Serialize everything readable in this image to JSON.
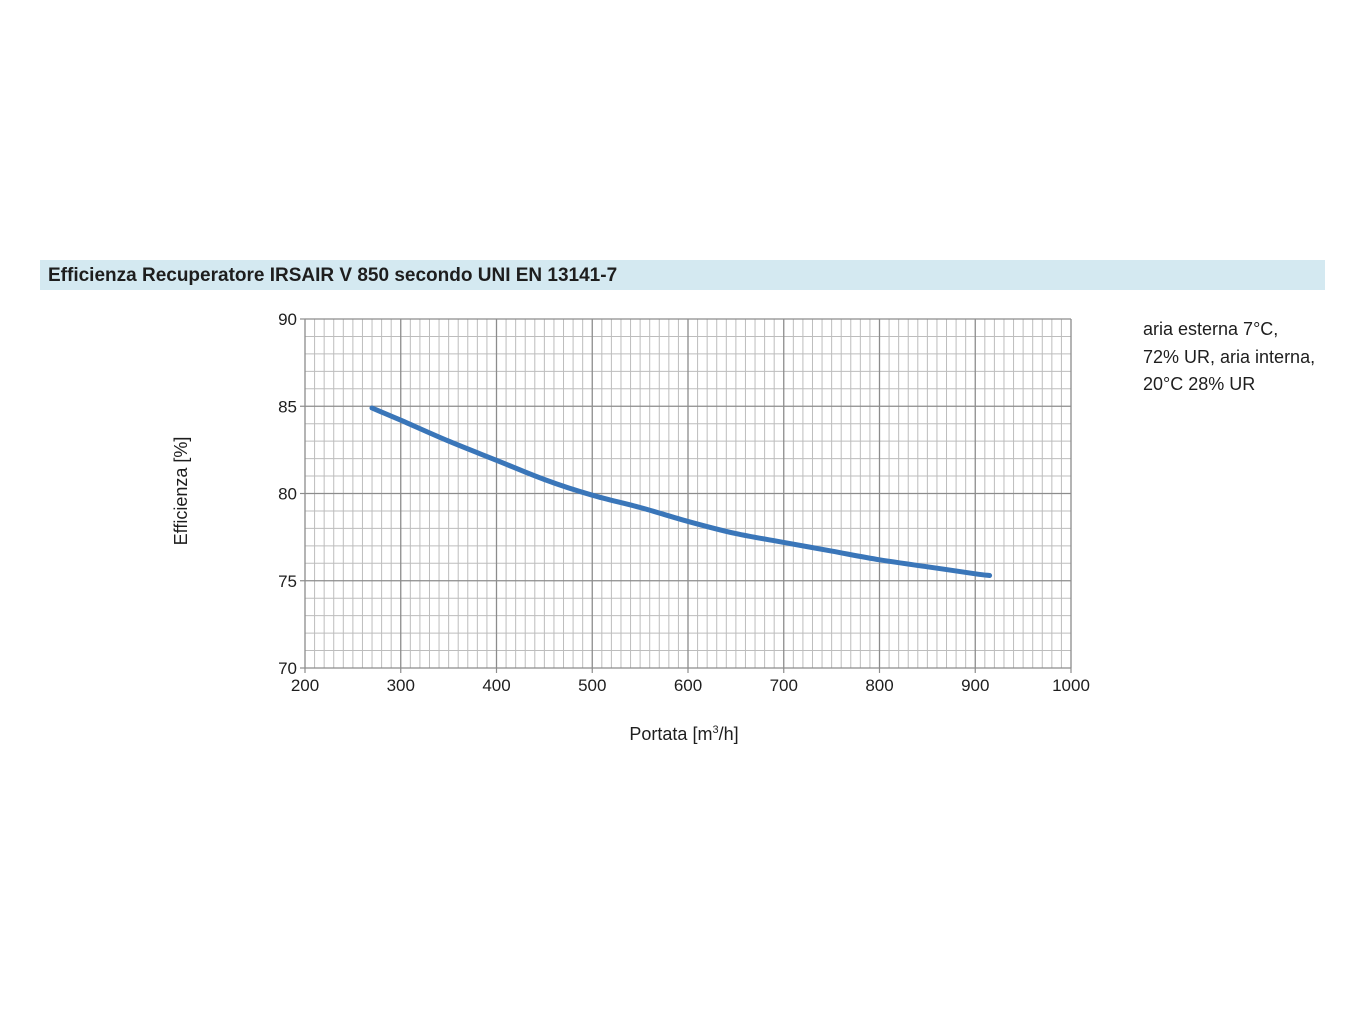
{
  "chart_data": {
    "type": "line",
    "title": "Efficienza Recuperatore IRSAIR V 850 secondo UNI EN 13141-7",
    "xlabel": "Portata [m",
    "xlabel_sup": "3",
    "xlabel_suffix": "/h]",
    "ylabel": "Efficienza [%]",
    "xlim": [
      200,
      1000
    ],
    "ylim": [
      70,
      90
    ],
    "x_ticks": [
      "200",
      "300",
      "400",
      "500",
      "600",
      "700",
      "800",
      "900",
      "1000"
    ],
    "y_ticks": [
      "70",
      "75",
      "80",
      "85",
      "90"
    ],
    "grid": true,
    "series": [
      {
        "color": "#3a76b9",
        "x": [
          270,
          300,
          350,
          400,
          450,
          500,
          550,
          600,
          650,
          700,
          750,
          800,
          850,
          900,
          915
        ],
        "y": [
          84.9,
          84.2,
          83.0,
          81.9,
          80.8,
          79.9,
          79.2,
          78.4,
          77.7,
          77.2,
          76.7,
          76.2,
          75.8,
          75.4,
          75.3
        ]
      }
    ],
    "annotation": [
      "aria esterna 7°C,",
      "72% UR, aria interna,",
      "20°C 28% UR"
    ]
  },
  "colors": {
    "title_background": "#d4e9f1",
    "grid_major": "#8c8c8c",
    "grid_minor": "#bdbdbd",
    "line": "#3a76b9"
  }
}
